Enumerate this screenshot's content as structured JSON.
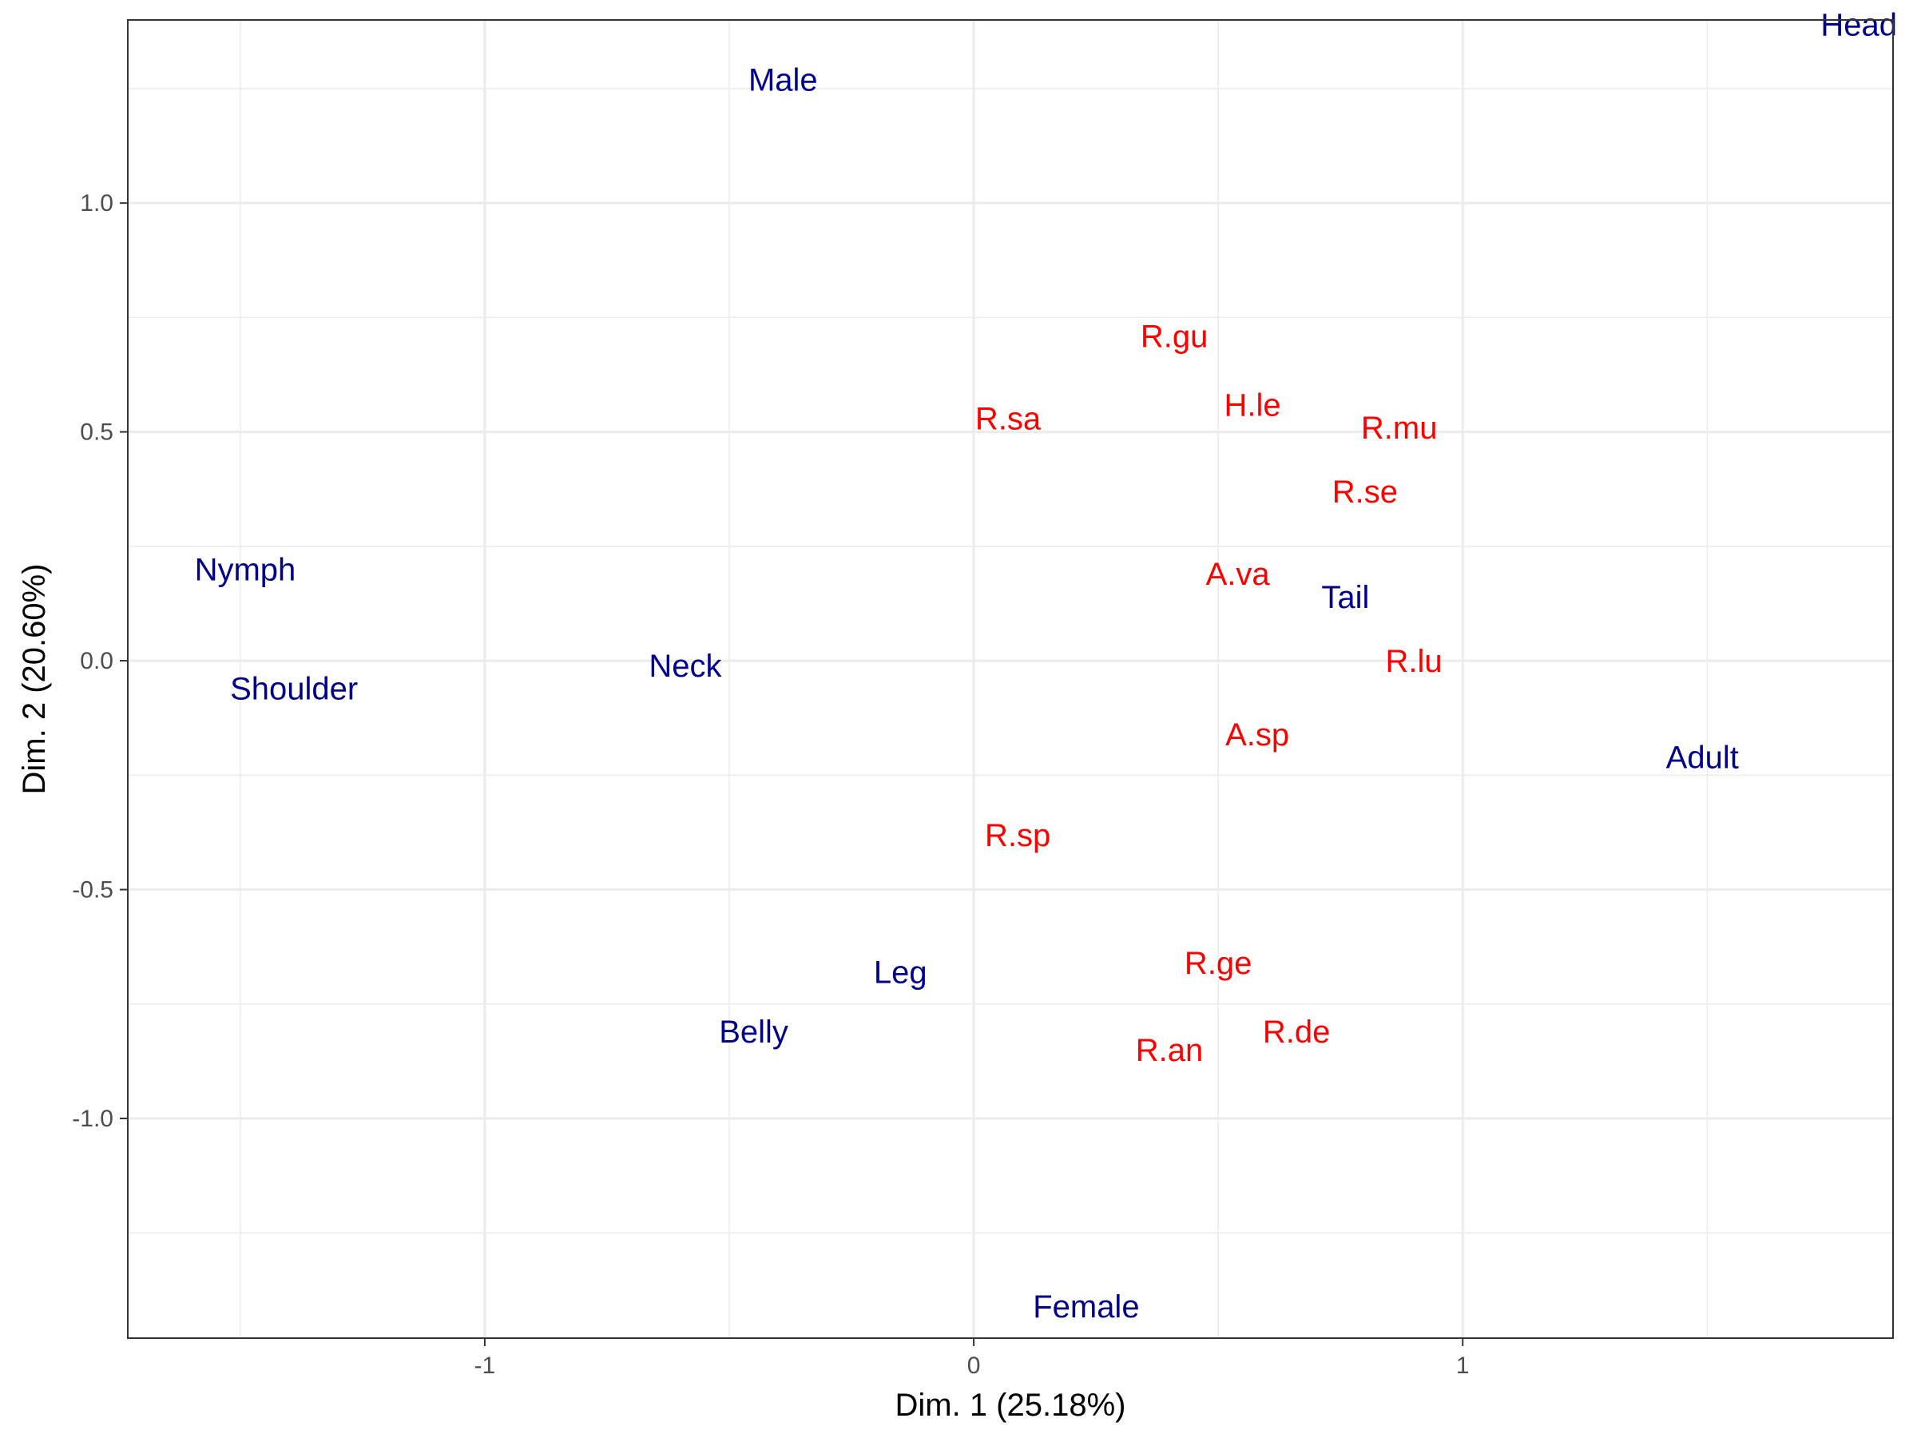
{
  "chart_data": {
    "type": "scatter",
    "xlabel": "Dim. 1 (25.18%)",
    "ylabel": "Dim. 2 (20.60%)",
    "xlim": [
      -1.73,
      1.88
    ],
    "ylim": [
      -1.48,
      1.4
    ],
    "x_ticks": [
      {
        "value": -1,
        "label": "-1"
      },
      {
        "value": 0,
        "label": "0"
      },
      {
        "value": 1,
        "label": "1"
      }
    ],
    "y_ticks": [
      {
        "value": -1.0,
        "label": "-1.0"
      },
      {
        "value": -0.5,
        "label": "-0.5"
      },
      {
        "value": 0.0,
        "label": "0.0"
      },
      {
        "value": 0.5,
        "label": "0.5"
      },
      {
        "value": 1.0,
        "label": "1.0"
      }
    ],
    "grid": true,
    "colors": {
      "columns": "#00008b",
      "rows": "#ff0000"
    },
    "series": [
      {
        "group": "columns",
        "color": "#00008b",
        "points": [
          {
            "label": "Head",
            "x": 1.81,
            "y": 1.39
          },
          {
            "label": "Male",
            "x": -0.39,
            "y": 1.27
          },
          {
            "label": "Nymph",
            "x": -1.49,
            "y": 0.2
          },
          {
            "label": "Shoulder",
            "x": -1.39,
            "y": -0.06
          },
          {
            "label": "Neck",
            "x": -0.59,
            "y": -0.01
          },
          {
            "label": "Tail",
            "x": 0.76,
            "y": 0.14
          },
          {
            "label": "Adult",
            "x": 1.49,
            "y": -0.21
          },
          {
            "label": "Leg",
            "x": -0.15,
            "y": -0.68
          },
          {
            "label": "Belly",
            "x": -0.45,
            "y": -0.81
          },
          {
            "label": "Female",
            "x": 0.23,
            "y": -1.41
          }
        ]
      },
      {
        "group": "rows",
        "color": "#ff0000",
        "points": [
          {
            "label": "R.gu",
            "x": 0.41,
            "y": 0.71
          },
          {
            "label": "H.le",
            "x": 0.57,
            "y": 0.56
          },
          {
            "label": "R.sa",
            "x": 0.07,
            "y": 0.53
          },
          {
            "label": "R.mu",
            "x": 0.87,
            "y": 0.51
          },
          {
            "label": "R.se",
            "x": 0.8,
            "y": 0.37
          },
          {
            "label": "A.va",
            "x": 0.54,
            "y": 0.19
          },
          {
            "label": "R.lu",
            "x": 0.9,
            "y": 0.0
          },
          {
            "label": "A.sp",
            "x": 0.58,
            "y": -0.16
          },
          {
            "label": "R.sp",
            "x": 0.09,
            "y": -0.38
          },
          {
            "label": "R.ge",
            "x": 0.5,
            "y": -0.66
          },
          {
            "label": "R.de",
            "x": 0.66,
            "y": -0.81
          },
          {
            "label": "R.an",
            "x": 0.4,
            "y": -0.85
          }
        ]
      }
    ]
  }
}
